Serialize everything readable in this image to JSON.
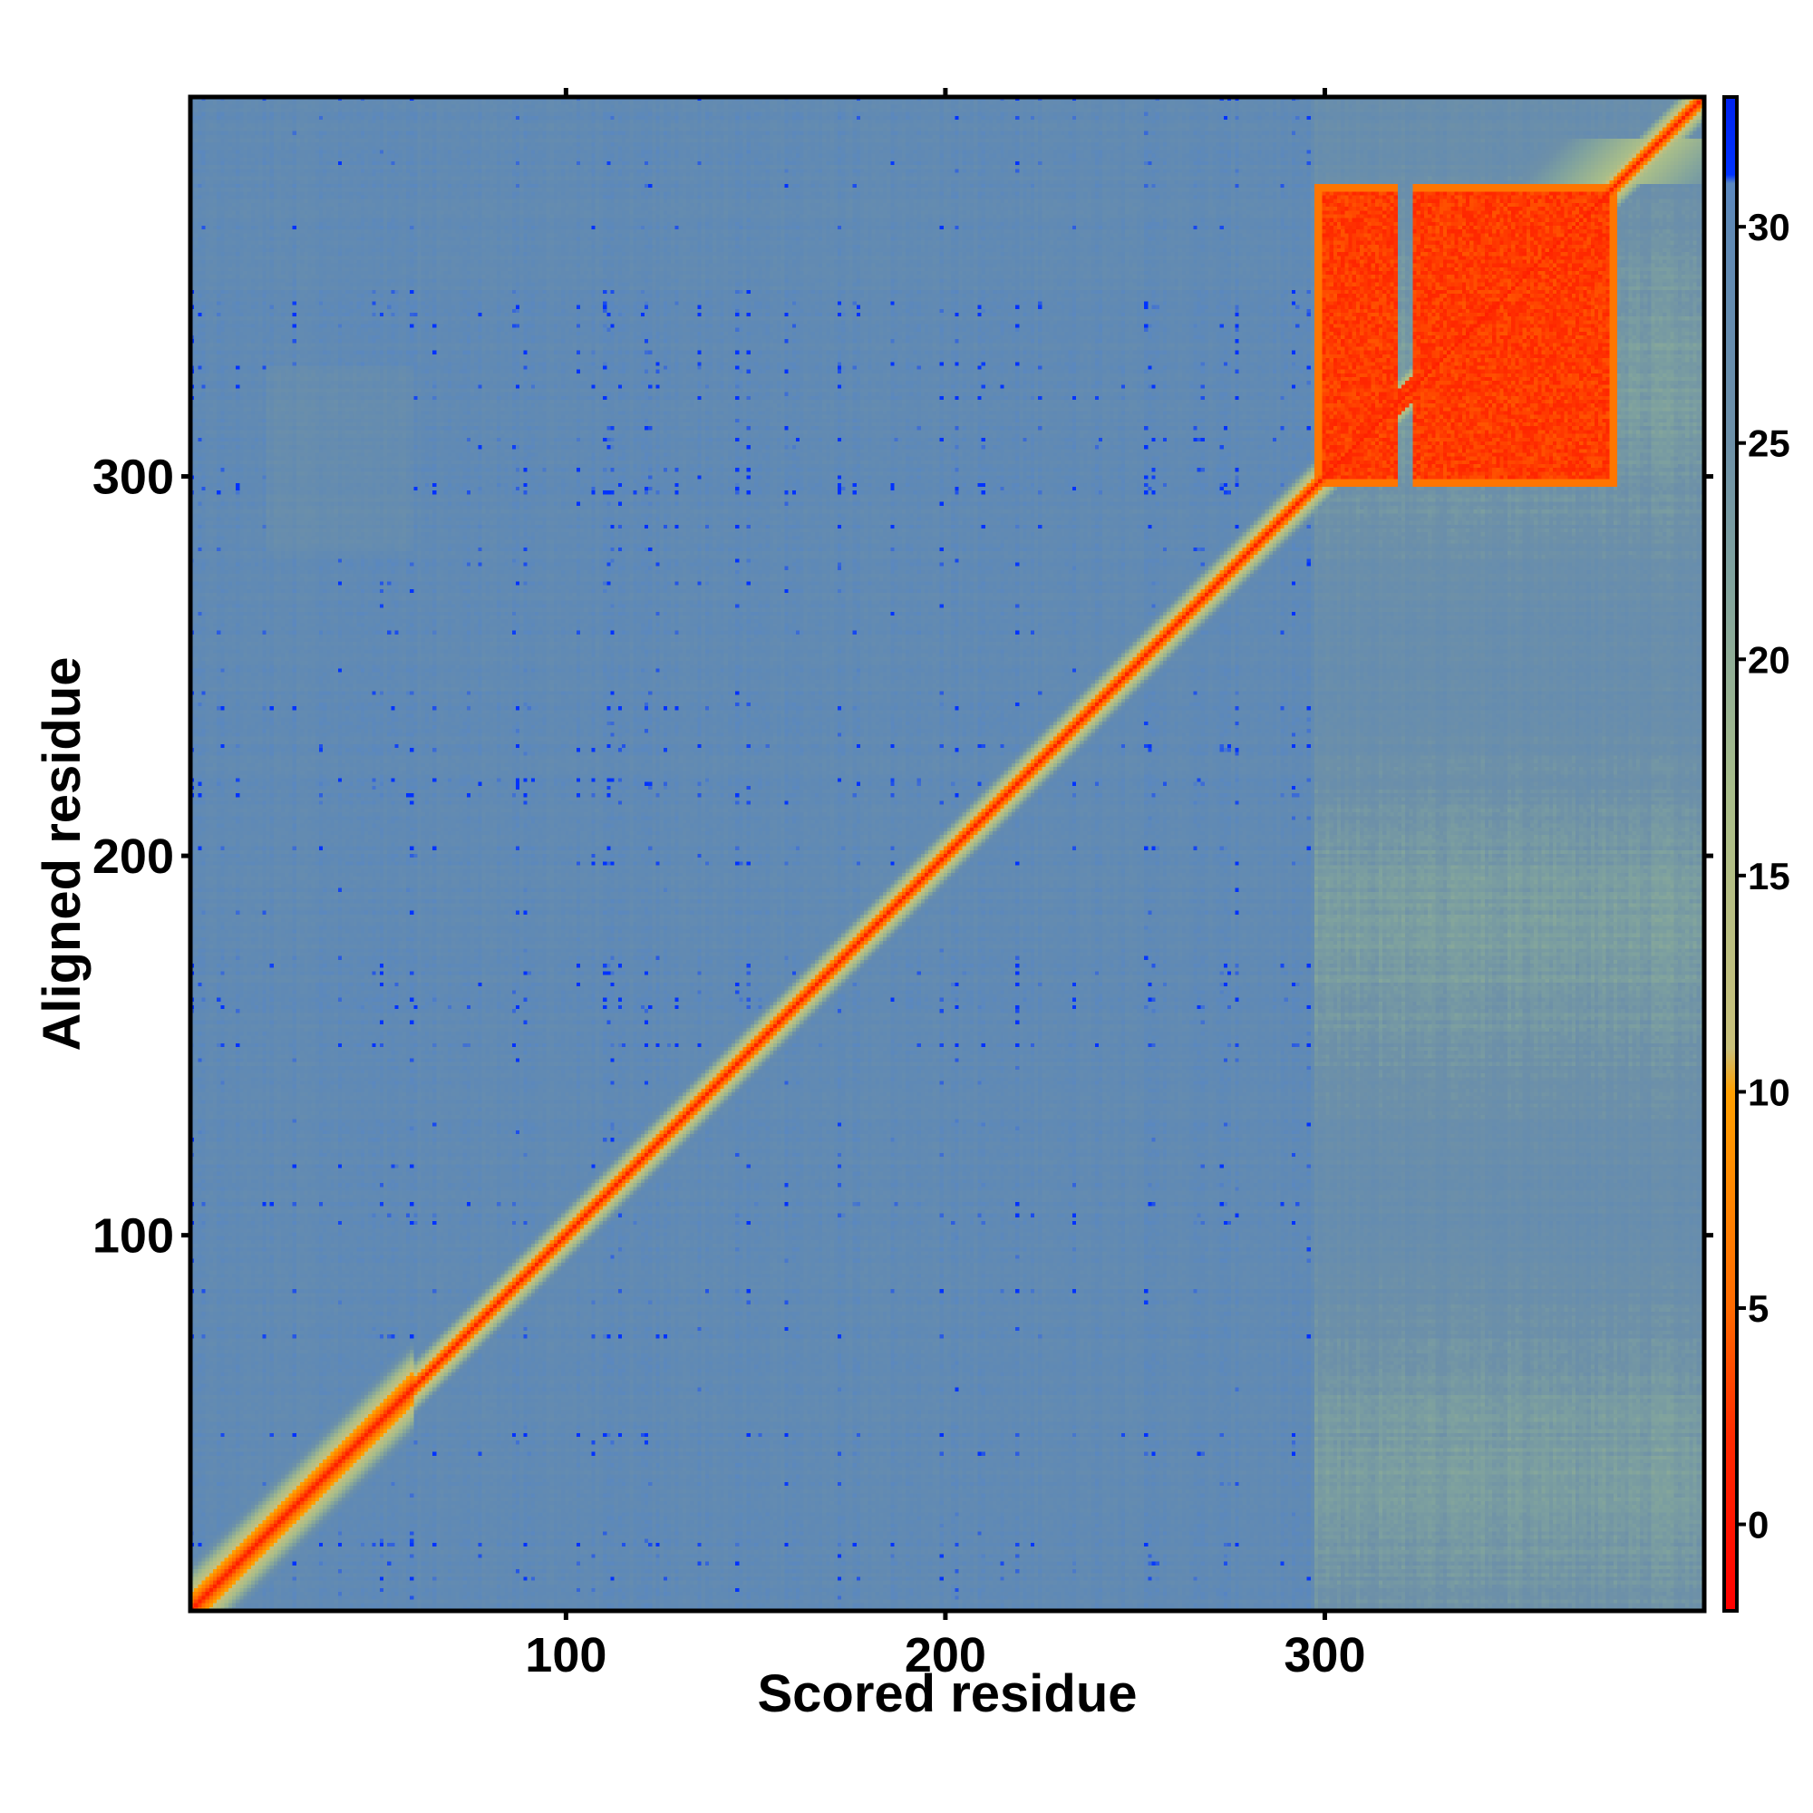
{
  "chart_data": {
    "type": "heatmap",
    "title": "",
    "xlabel": "Scored residue",
    "ylabel": "Aligned residue",
    "n_residues": 400,
    "xlim": [
      1,
      400
    ],
    "ylim": [
      1,
      400
    ],
    "x_ticks": [
      100,
      200,
      300
    ],
    "y_ticks": [
      100,
      200,
      300
    ],
    "x_tick_labels": [
      "100",
      "200",
      "300"
    ],
    "y_tick_labels": [
      "100",
      "200",
      "300"
    ],
    "colorbar": {
      "range": [
        -2,
        33
      ],
      "ticks": [
        0,
        5,
        10,
        15,
        20,
        25,
        30
      ],
      "tick_labels": [
        "0",
        "5",
        "10",
        "15",
        "20",
        "25",
        "30"
      ],
      "stops": [
        {
          "value": -2,
          "color": "#ff0000"
        },
        {
          "value": 2,
          "color": "#ff2a00"
        },
        {
          "value": 5,
          "color": "#ff6a00"
        },
        {
          "value": 10,
          "color": "#ffa000"
        },
        {
          "value": 11,
          "color": "#c9c07a"
        },
        {
          "value": 17,
          "color": "#a8bd8a"
        },
        {
          "value": 22,
          "color": "#7fa29e"
        },
        {
          "value": 25,
          "color": "#6d90a8"
        },
        {
          "value": 30,
          "color": "#5f89b5"
        },
        {
          "value": 31,
          "color": "#5a88c0"
        },
        {
          "value": 31.2,
          "color": "#0033ff"
        },
        {
          "value": 33,
          "color": "#0022ee"
        }
      ]
    },
    "features": {
      "diagonal": {
        "from": 1,
        "to": 400,
        "value": 0,
        "band_value_near": 5
      },
      "high_confidence_block": {
        "x_range": [
          298,
          377
        ],
        "y_range": [
          298,
          377
        ],
        "value": 1.5,
        "gap_residues": [
          320,
          323
        ]
      },
      "background_value": 29,
      "lighter_region_columns": [
        298,
        400
      ],
      "lighter_region_value": 22
    }
  }
}
